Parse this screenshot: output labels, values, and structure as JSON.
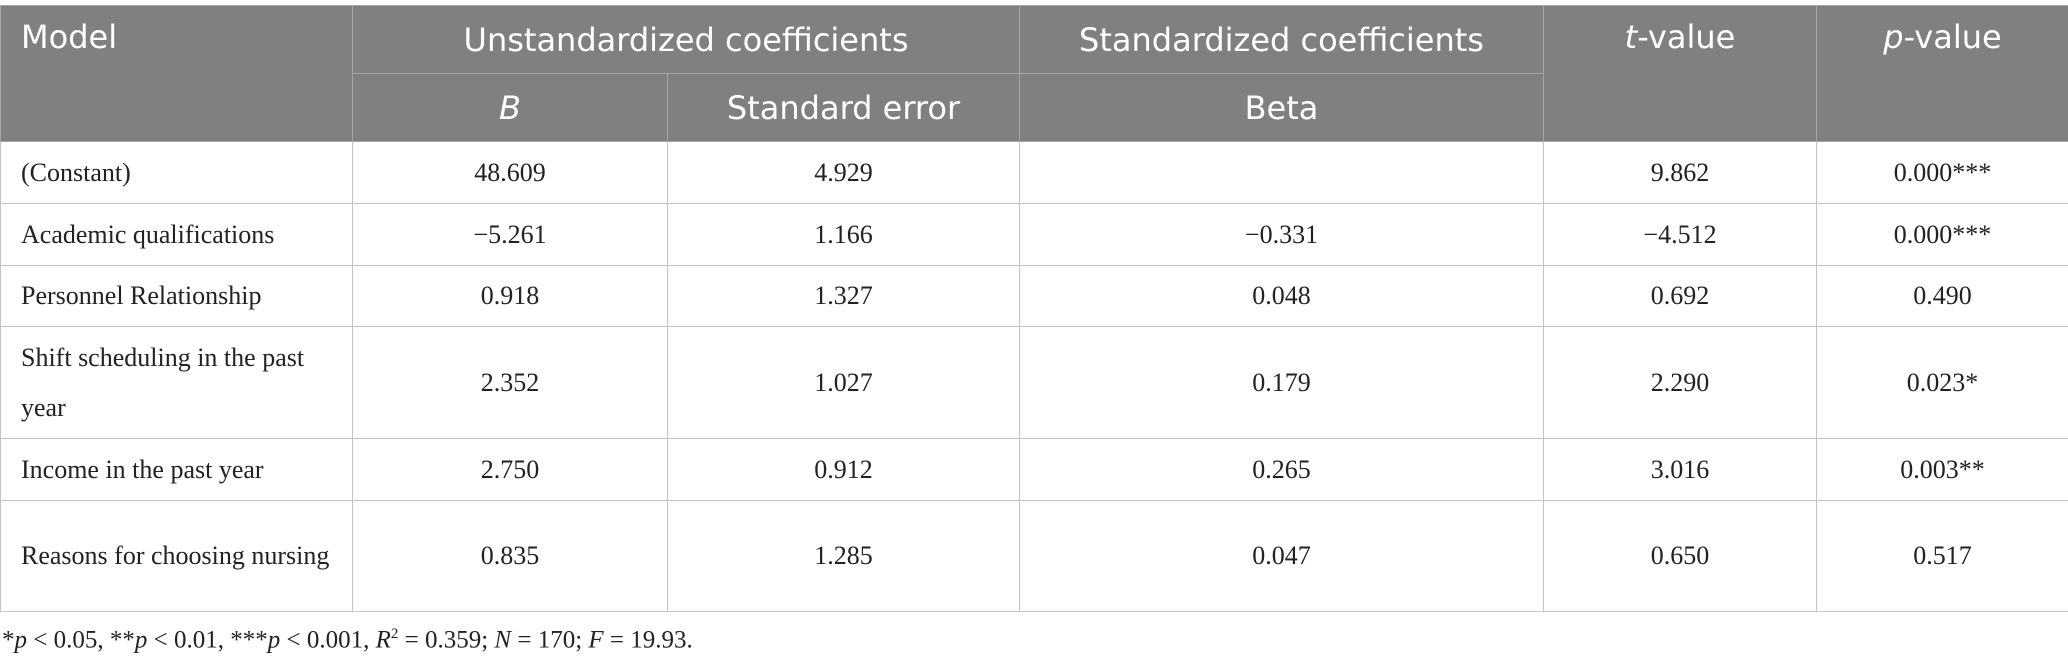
{
  "table": {
    "header": {
      "model": "Model",
      "unstandardized": "Unstandardized coefficients",
      "standardized": "Standardized coefficients",
      "t_value": [
        "t",
        "-value"
      ],
      "p_value": [
        "p",
        "-value"
      ],
      "b": "B",
      "standard_error": "Standard error",
      "beta": "Beta"
    },
    "rows": [
      [
        "(Constant)",
        "48.609",
        "4.929",
        null,
        "9.862",
        "0.000***"
      ],
      [
        "Academic qualifications",
        "−5.261",
        "1.166",
        "−0.331",
        "−4.512",
        "0.000***"
      ],
      [
        "Personnel Relationship",
        "0.918",
        "1.327",
        "0.048",
        "0.692",
        "0.490"
      ],
      [
        "Shift scheduling in the past year",
        "2.352",
        "1.027",
        "0.179",
        "2.290",
        "0.023*"
      ],
      [
        "Income in the past year",
        "2.750",
        "0.912",
        "0.265",
        "3.016",
        "0.003**"
      ],
      [
        "Reasons for choosing nursing",
        "0.835",
        "1.285",
        "0.047",
        "0.650",
        "0.517"
      ]
    ]
  },
  "footnote": [
    "*",
    "p",
    " < 0.05, **",
    "p",
    " < 0.01, ***",
    "p",
    " < 0.001, ",
    "R",
    "2",
    " = 0.359; ",
    "N",
    " = 170; ",
    "F",
    " = 19.93."
  ]
}
